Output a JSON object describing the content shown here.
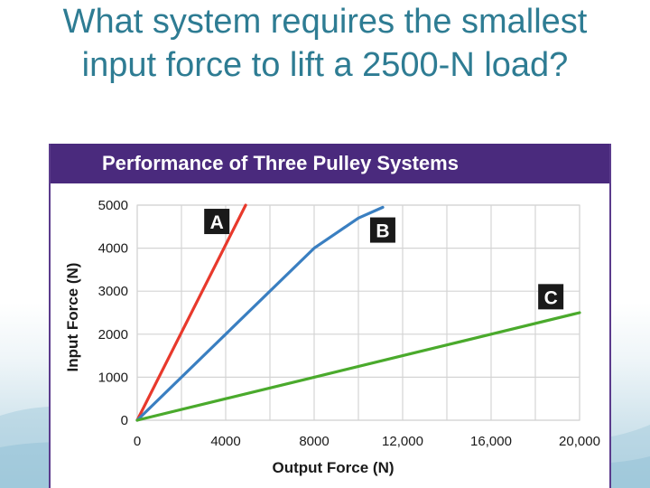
{
  "slide": {
    "title": "What system requires the smallest input force to lift a 2500-N load?"
  },
  "colors": {
    "title": "#2e7c93",
    "header_bg": "#4a2a7d",
    "series_a": "#e8392c",
    "series_b": "#3a7fc1",
    "series_c": "#4aaa2c",
    "grid": "#d4d4d4"
  },
  "chart_data": {
    "type": "line",
    "title": "Performance of Three Pulley Systems",
    "xlabel": "Output Force (N)",
    "ylabel": "Input Force (N)",
    "xlim": [
      0,
      20000
    ],
    "ylim": [
      0,
      5000
    ],
    "x_ticks": [
      0,
      4000,
      8000,
      12000,
      16000,
      20000
    ],
    "x_tick_labels": [
      "0",
      "4000",
      "8000",
      "12,000",
      "16,000",
      "20,000"
    ],
    "y_ticks": [
      0,
      1000,
      2000,
      3000,
      4000,
      5000
    ],
    "y_tick_labels": [
      "0",
      "1000",
      "2000",
      "3000",
      "4000",
      "5000"
    ],
    "grid": true,
    "series": [
      {
        "name": "A",
        "color": "#e8392c",
        "points": [
          [
            0,
            0
          ],
          [
            4900,
            5000
          ]
        ]
      },
      {
        "name": "B",
        "color": "#3a7fc1",
        "points": [
          [
            0,
            0
          ],
          [
            4000,
            2000
          ],
          [
            8000,
            4000
          ],
          [
            10000,
            4700
          ],
          [
            11100,
            4950
          ]
        ]
      },
      {
        "name": "C",
        "color": "#4aaa2c",
        "points": [
          [
            0,
            0
          ],
          [
            4000,
            500
          ],
          [
            8000,
            1000
          ],
          [
            12000,
            1500
          ],
          [
            16000,
            2000
          ],
          [
            20000,
            2500
          ]
        ]
      }
    ],
    "markers": [
      {
        "label": "A",
        "x": 3600,
        "y": 4600
      },
      {
        "label": "B",
        "x": 11100,
        "y": 4400
      },
      {
        "label": "C",
        "x": 18700,
        "y": 2850
      }
    ]
  }
}
